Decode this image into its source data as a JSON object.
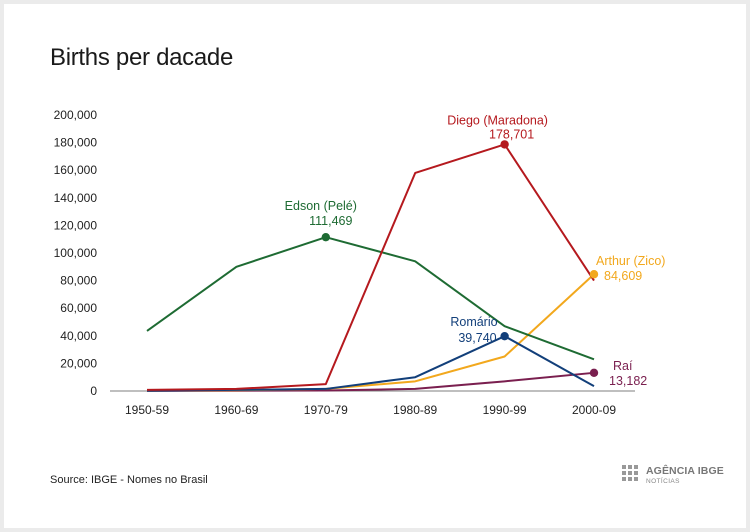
{
  "title": "Births per dacade",
  "source": "Source: IBGE - Nomes no Brasil",
  "logo": {
    "brand": "AGÊNCIA IBGE",
    "sub": "NOTÍCIAS"
  },
  "chart_data": {
    "type": "line",
    "title": "Births per dacade",
    "categories": [
      "1950-59",
      "1960-69",
      "1970-79",
      "1980-89",
      "1990-99",
      "2000-09"
    ],
    "ylim": [
      0,
      200000
    ],
    "yticks": [
      "0",
      "20,000",
      "40,000",
      "60,000",
      "80,000",
      "100,000",
      "120,000",
      "140,000",
      "160,000",
      "180,000",
      "200,000"
    ],
    "ytick_values": [
      0,
      20000,
      40000,
      60000,
      80000,
      100000,
      120000,
      140000,
      160000,
      180000,
      200000
    ],
    "grid": false,
    "series": [
      {
        "name": "Edson (Pelé)",
        "color": "#1e6b33",
        "values": [
          43500,
          90000,
          111469,
          94000,
          47000,
          23000
        ],
        "highlight_index": 2,
        "label_value": "111,469"
      },
      {
        "name": "Diego (Maradona)",
        "color": "#b5191e",
        "values": [
          800,
          1500,
          5000,
          158000,
          178701,
          80000
        ],
        "highlight_index": 4,
        "label_value": "178,701"
      },
      {
        "name": "Arthur (Zico)",
        "color": "#f2a81d",
        "values": [
          300,
          500,
          1500,
          7000,
          25000,
          84609
        ],
        "highlight_index": 5,
        "label_value": "84,609"
      },
      {
        "name": "Romário",
        "color": "#123f7a",
        "values": [
          200,
          800,
          1500,
          10000,
          39740,
          3500
        ],
        "highlight_index": 4,
        "label_value": "39,740"
      },
      {
        "name": "Raí",
        "color": "#7a1f4f",
        "values": [
          100,
          200,
          400,
          1500,
          7000,
          13182
        ],
        "highlight_index": 5,
        "label_value": "13,182"
      }
    ]
  }
}
